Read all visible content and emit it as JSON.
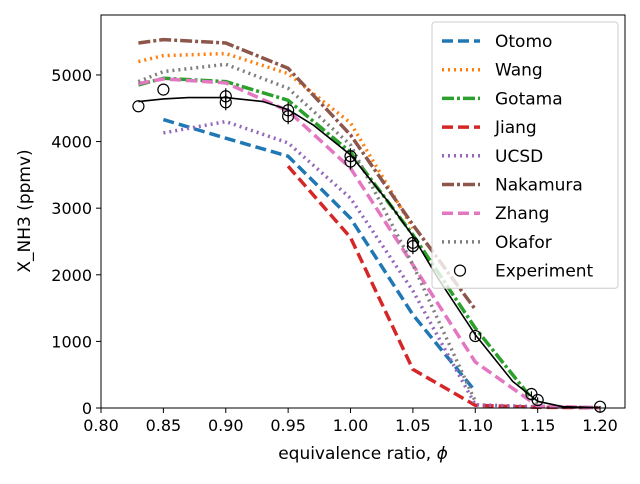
{
  "chart_data": {
    "type": "line",
    "xlabel": "equivalence ratio, ",
    "xlabel_symbol": "ϕ",
    "ylabel": "X_NH3 (ppmv)",
    "xlim": [
      0.8,
      1.22
    ],
    "ylim": [
      0,
      5900
    ],
    "xticks": [
      0.8,
      0.85,
      0.9,
      0.95,
      1.0,
      1.05,
      1.1,
      1.15,
      1.2
    ],
    "xtick_labels": [
      "0.80",
      "0.85",
      "0.90",
      "0.95",
      "1.00",
      "1.05",
      "1.10",
      "1.15",
      "1.20"
    ],
    "yticks": [
      0,
      1000,
      2000,
      3000,
      4000,
      5000
    ],
    "ytick_labels": [
      "0",
      "1000",
      "2000",
      "3000",
      "4000",
      "5000"
    ],
    "grid": false,
    "legend_position": "top-right",
    "series": [
      {
        "name": "Otomo",
        "color": "#1f77b4",
        "dash": "11,5",
        "x": [
          0.85,
          0.9,
          0.95,
          1.0,
          1.05,
          1.1
        ],
        "y": [
          4330,
          4050,
          3780,
          2850,
          1400,
          250
        ]
      },
      {
        "name": "Wang",
        "color": "#ff7f0e",
        "dash": "2,4",
        "x": [
          0.83,
          0.85,
          0.9,
          0.95,
          1.0,
          1.05
        ],
        "y": [
          5200,
          5290,
          5320,
          5020,
          4280,
          2700
        ]
      },
      {
        "name": "Gotama",
        "color": "#2ca02c",
        "dash": "12,3,3,3",
        "x": [
          0.83,
          0.85,
          0.9,
          0.95,
          1.0,
          1.05,
          1.1,
          1.15
        ],
        "y": [
          4850,
          4950,
          4900,
          4620,
          3840,
          2600,
          1200,
          30
        ]
      },
      {
        "name": "Jiang",
        "color": "#d62728",
        "dash": "11,5",
        "x": [
          0.95,
          1.0,
          1.05,
          1.1,
          1.15,
          1.2
        ],
        "y": [
          3630,
          2560,
          580,
          40,
          10,
          5
        ]
      },
      {
        "name": "UCSD",
        "color": "#9467bd",
        "dash": "2,4",
        "x": [
          0.85,
          0.9,
          0.95,
          1.0,
          1.05,
          1.1,
          1.15,
          1.2
        ],
        "y": [
          4130,
          4300,
          3980,
          3150,
          1760,
          50,
          20,
          5
        ]
      },
      {
        "name": "Nakamura",
        "color": "#8c564b",
        "dash": "12,3,3,3",
        "x": [
          0.83,
          0.85,
          0.9,
          0.95,
          1.0,
          1.05,
          1.1
        ],
        "y": [
          5480,
          5530,
          5480,
          5100,
          4100,
          2750,
          1480
        ]
      },
      {
        "name": "Zhang",
        "color": "#e377c2",
        "dash": "11,5",
        "x": [
          0.83,
          0.85,
          0.9,
          0.95,
          1.0,
          1.05,
          1.1,
          1.15,
          1.2
        ],
        "y": [
          4870,
          4940,
          4880,
          4460,
          3600,
          2150,
          690,
          30,
          5
        ]
      },
      {
        "name": "Okafor",
        "color": "#7f7f7f",
        "dash": "2,4",
        "x": [
          0.83,
          0.85,
          0.9,
          0.95,
          1.0,
          1.05,
          1.1
        ],
        "y": [
          4900,
          5050,
          5160,
          4800,
          3950,
          2150,
          100
        ]
      }
    ],
    "fit_line": {
      "color": "#000000",
      "x": [
        0.83,
        0.85,
        0.87,
        0.9,
        0.93,
        0.95,
        0.97,
        1.0,
        1.03,
        1.05,
        1.07,
        1.1,
        1.13,
        1.15,
        1.17,
        1.2
      ],
      "y": [
        4600,
        4640,
        4660,
        4660,
        4600,
        4480,
        4250,
        3800,
        3100,
        2580,
        1950,
        1100,
        400,
        100,
        20,
        5
      ]
    },
    "experiment": {
      "name": "Experiment",
      "x": [
        0.83,
        0.85,
        0.9,
        0.9,
        0.95,
        0.95,
        1.0,
        1.0,
        1.05,
        1.05,
        1.1,
        1.145,
        1.15,
        1.2
      ],
      "y": [
        4530,
        4780,
        4680,
        4590,
        4470,
        4380,
        3780,
        3700,
        2480,
        2430,
        1080,
        210,
        120,
        20
      ],
      "err": [
        0,
        0,
        120,
        120,
        120,
        120,
        120,
        120,
        120,
        120,
        60,
        40,
        40,
        10
      ]
    }
  }
}
